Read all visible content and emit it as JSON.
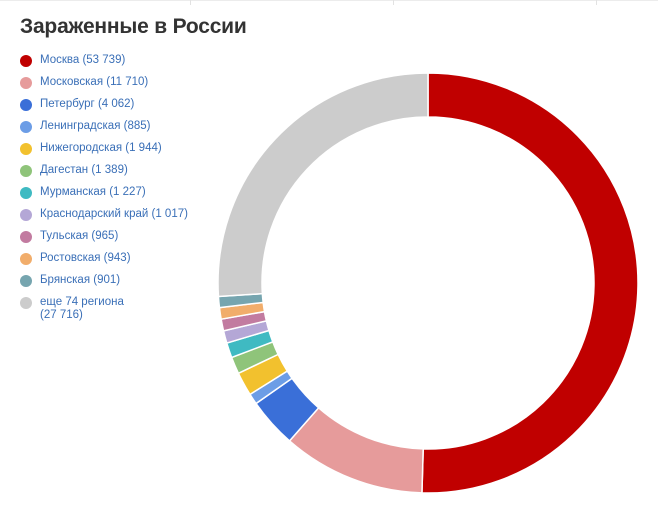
{
  "title": "Зараженные в России",
  "chart_data": {
    "type": "pie",
    "title": "Зараженные в России",
    "legend_position": "left",
    "donut": true,
    "series": [
      {
        "name": "Москва",
        "value": 53739,
        "label": "Москва (53 739)",
        "color": "#c00000"
      },
      {
        "name": "Московская",
        "value": 11710,
        "label": "Московская (11 710)",
        "color": "#e69b9b"
      },
      {
        "name": "Петербург",
        "value": 4062,
        "label": "Петербург (4 062)",
        "color": "#3a6fd8"
      },
      {
        "name": "Ленинградская",
        "value": 885,
        "label": "Ленинградская (885)",
        "color": "#6c9de6"
      },
      {
        "name": "Нижегородская",
        "value": 1944,
        "label": "Нижегородская (1 944)",
        "color": "#f2c12e"
      },
      {
        "name": "Дагестан",
        "value": 1389,
        "label": "Дагестан (1 389)",
        "color": "#8fc47a"
      },
      {
        "name": "Мурманская",
        "value": 1227,
        "label": "Мурманская (1 227)",
        "color": "#3fbac2"
      },
      {
        "name": "Краснодарский край",
        "value": 1017,
        "label": "Краснодарский край (1 017)",
        "color": "#b4a7d6"
      },
      {
        "name": "Тульская",
        "value": 965,
        "label": "Тульская (965)",
        "color": "#c27ba0"
      },
      {
        "name": "Ростовская",
        "value": 943,
        "label": "Ростовская (943)",
        "color": "#f1ad6b"
      },
      {
        "name": "Брянская",
        "value": 901,
        "label": "Брянская (901)",
        "color": "#76a5af"
      },
      {
        "name": "еще 74 региона",
        "value": 27716,
        "label_lines": [
          "еще 74 региона",
          "(27 716)"
        ],
        "color": "#cccccc"
      }
    ]
  }
}
